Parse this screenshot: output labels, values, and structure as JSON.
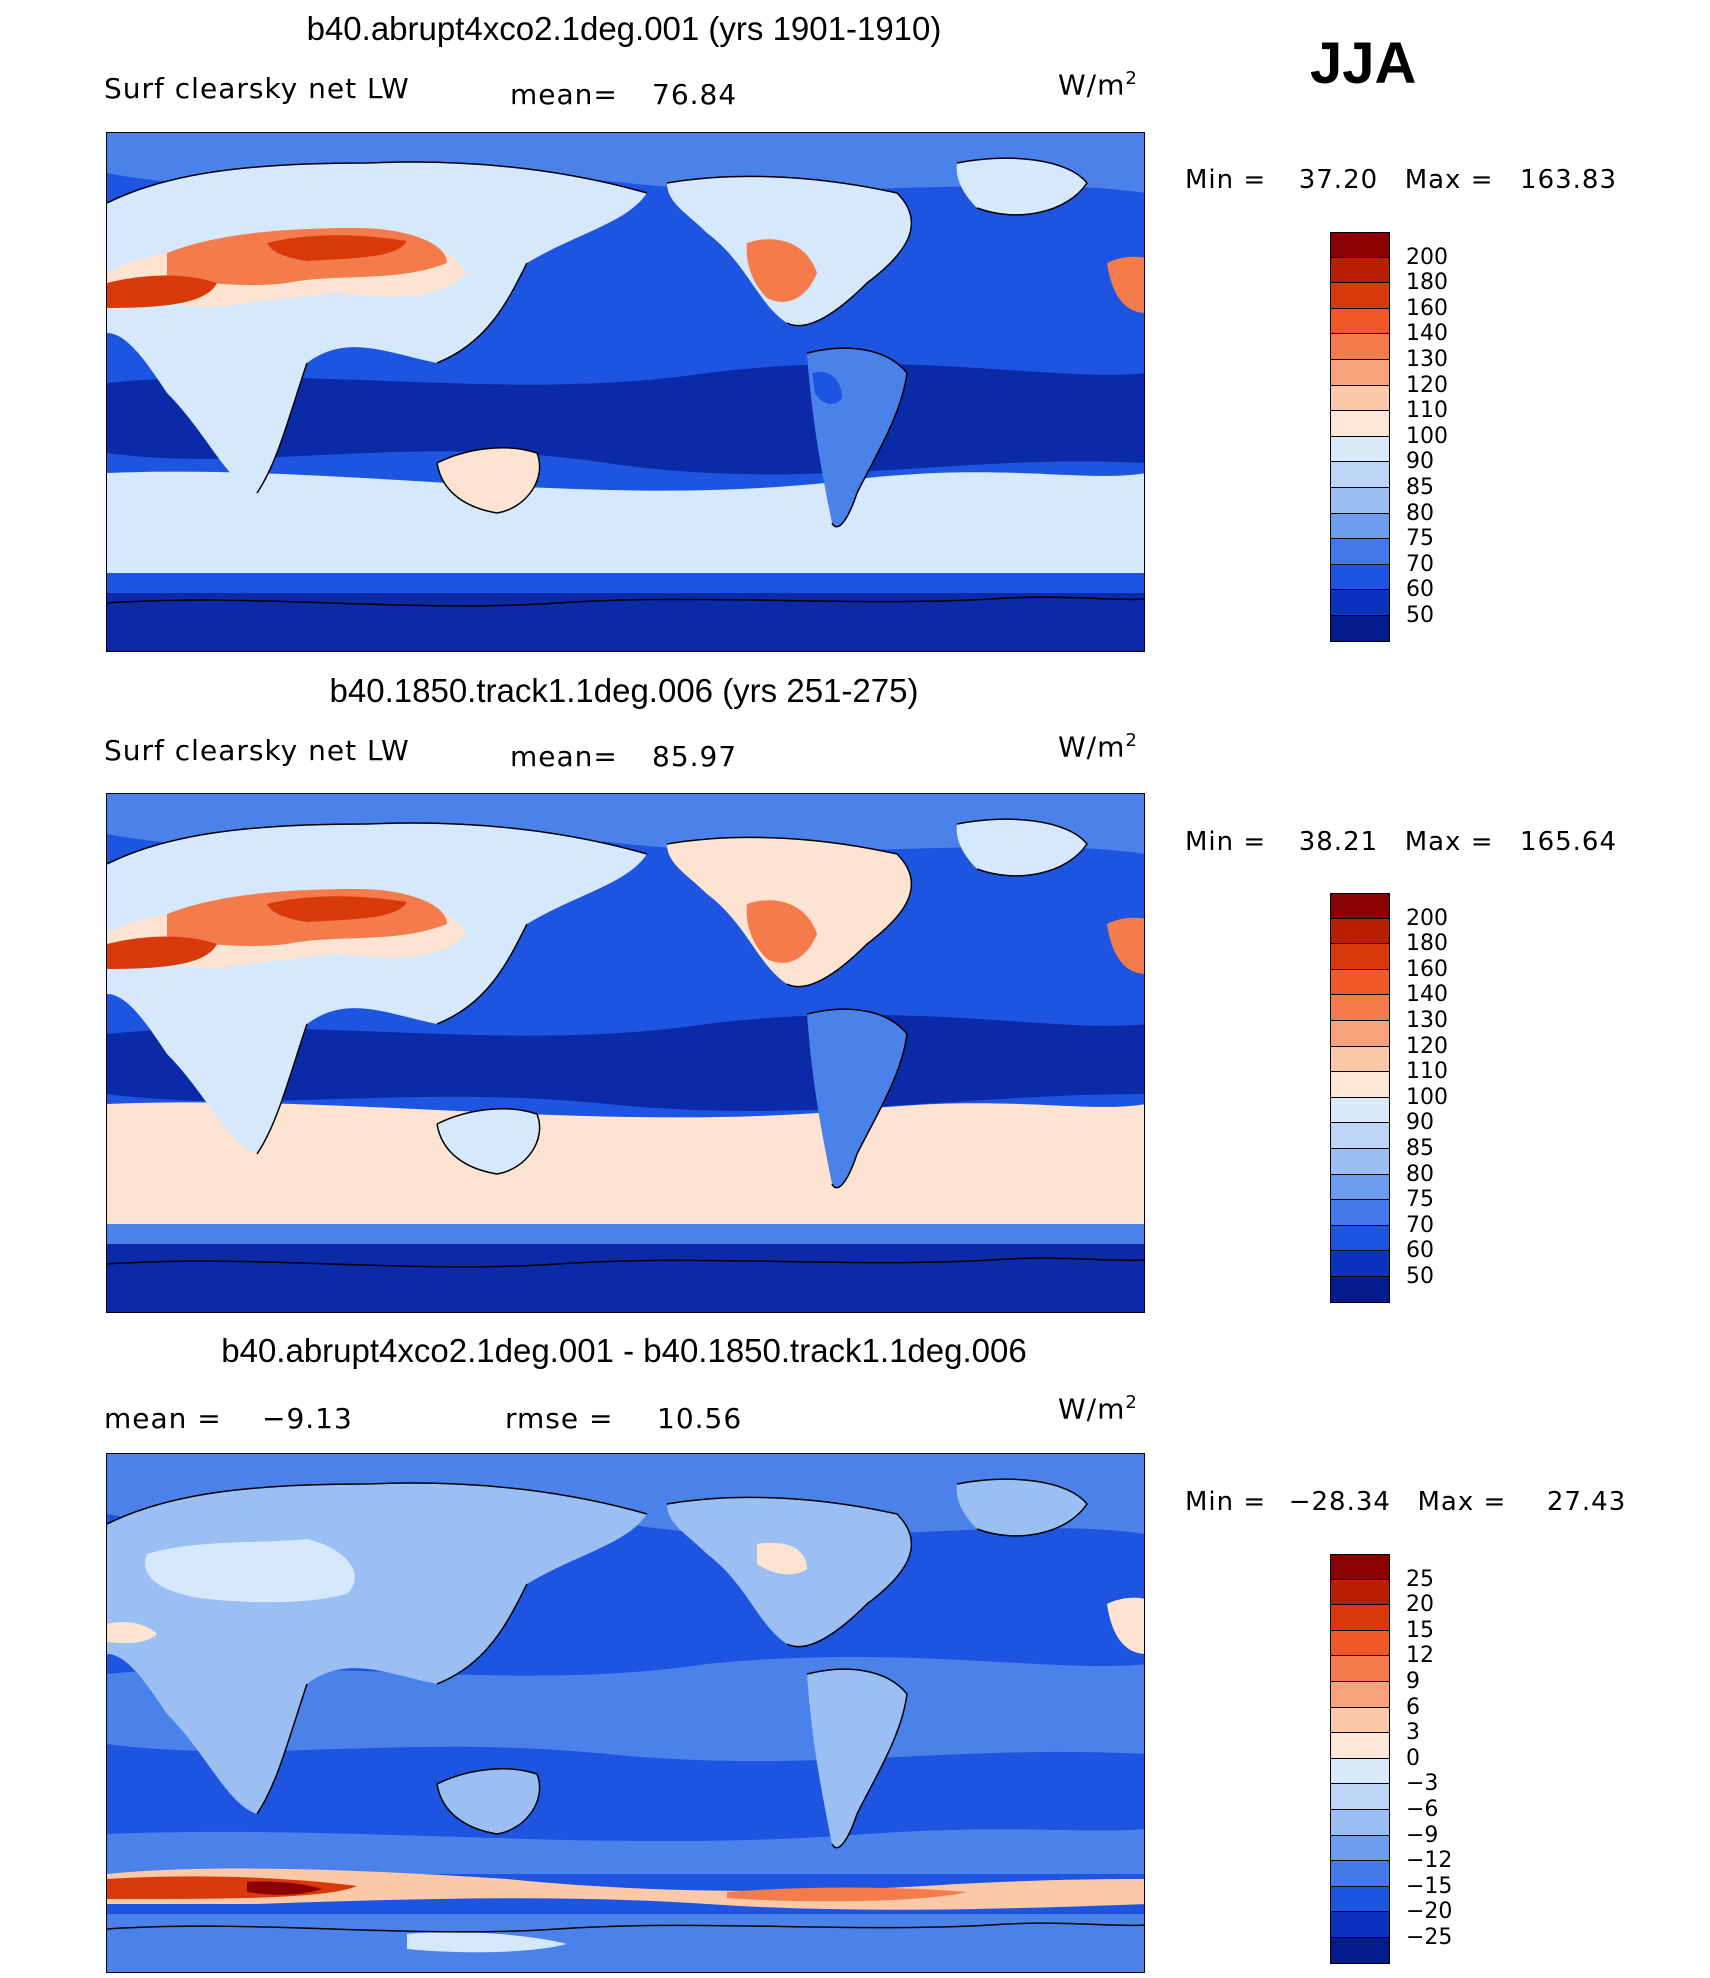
{
  "season": "JJA",
  "panels": [
    {
      "title": "b40.abrupt4xco2.1deg.001 (yrs 1901-1910)",
      "variable": "Surf clearsky net LW",
      "stat1_label": "mean=",
      "stat1_value": "76.84",
      "stat2_label": "",
      "stat2_value": "",
      "units": "W/m",
      "units_sup": "2",
      "min_label": "Min =",
      "min_value": "37.20",
      "max_label": "Max =",
      "max_value": "163.83"
    },
    {
      "title": "b40.1850.track1.1deg.006 (yrs 251-275)",
      "variable": "Surf clearsky net LW",
      "stat1_label": "mean=",
      "stat1_value": "85.97",
      "stat2_label": "",
      "stat2_value": "",
      "units": "W/m",
      "units_sup": "2",
      "min_label": "Min =",
      "min_value": "38.21",
      "max_label": "Max =",
      "max_value": "165.64"
    },
    {
      "title": "b40.abrupt4xco2.1deg.001 - b40.1850.track1.1deg.006",
      "variable": "",
      "stat1_label": "mean =",
      "stat1_value": "−9.13",
      "stat2_label": "rmse =",
      "stat2_value": "10.56",
      "units": "W/m",
      "units_sup": "2",
      "min_label": "Min =",
      "min_value": "−28.34",
      "max_label": "Max =",
      "max_value": "27.43"
    }
  ],
  "colorbars": [
    {
      "labels": [
        "200",
        "180",
        "160",
        "140",
        "130",
        "120",
        "110",
        "100",
        "90",
        "85",
        "80",
        "75",
        "70",
        "60",
        "50"
      ],
      "colors": [
        "#8b0000",
        "#b81e00",
        "#d93a0c",
        "#f0582a",
        "#f47c4c",
        "#f7a47c",
        "#fbc9a8",
        "#fde8d8",
        "#dbeafb",
        "#bdd6f7",
        "#9bbff2",
        "#6e9cec",
        "#4379e8",
        "#1d55e0",
        "#0c33c0",
        "#061c8c"
      ]
    },
    {
      "labels": [
        "200",
        "180",
        "160",
        "140",
        "130",
        "120",
        "110",
        "100",
        "90",
        "85",
        "80",
        "75",
        "70",
        "60",
        "50"
      ],
      "colors": [
        "#8b0000",
        "#b81e00",
        "#d93a0c",
        "#f0582a",
        "#f47c4c",
        "#f7a47c",
        "#fbc9a8",
        "#fde8d8",
        "#dbeafb",
        "#bdd6f7",
        "#9bbff2",
        "#6e9cec",
        "#4379e8",
        "#1d55e0",
        "#0c33c0",
        "#061c8c"
      ]
    },
    {
      "labels": [
        "25",
        "20",
        "15",
        "12",
        "9",
        "6",
        "3",
        "0",
        "−3",
        "−6",
        "−9",
        "−12",
        "−15",
        "−20",
        "−25"
      ],
      "colors": [
        "#8b0000",
        "#b81e00",
        "#d93a0c",
        "#f0582a",
        "#f47c4c",
        "#f7a47c",
        "#fbc9a8",
        "#fde8d8",
        "#dbeafb",
        "#bdd6f7",
        "#9bbff2",
        "#6e9cec",
        "#4379e8",
        "#1d55e0",
        "#0c33c0",
        "#061c8c"
      ]
    }
  ],
  "map_field_colors": {
    "deep": "#0a2aa8",
    "mid": "#1d55e0",
    "light": "#4a82ea",
    "pale": "#d6e8fb",
    "warm_pale": "#fde4d2",
    "warm": "#f47c4c",
    "hot": "#d93a0c",
    "coast": "#000000"
  }
}
